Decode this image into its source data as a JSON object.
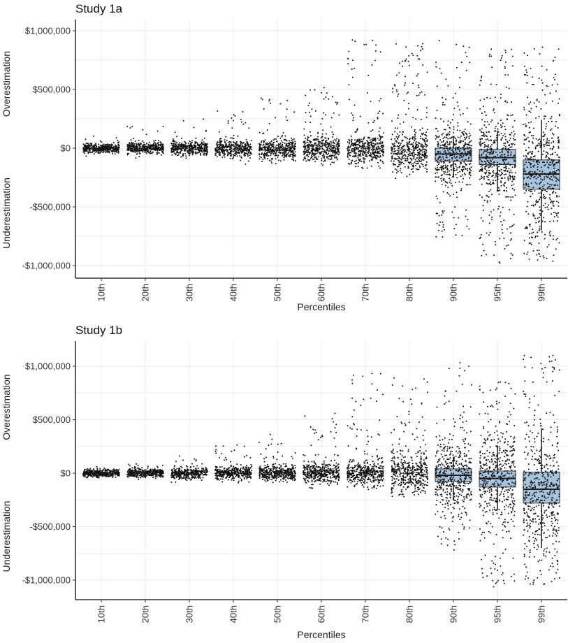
{
  "chart_data": [
    {
      "type": "boxplot-jitter",
      "title": "Study 1a",
      "xlabel": "Percentiles",
      "ylabel_top": "Overestimation",
      "ylabel_bottom": "Underestimation",
      "categories": [
        "10th",
        "20th",
        "30th",
        "40th",
        "50th",
        "60th",
        "70th",
        "80th",
        "90th",
        "95th",
        "99th"
      ],
      "yticks": [
        1000000,
        500000,
        0,
        -500000,
        -1000000
      ],
      "ytick_labels": [
        "$1,000,000",
        "$500,000",
        "$0",
        "-$500,000",
        "-$1,000,000"
      ],
      "ylim": [
        -1100000,
        1110000
      ],
      "grid": true,
      "box_fill": "#a7c4de",
      "point_color": "#111111",
      "spread": [
        20000,
        25000,
        30000,
        35000,
        40000,
        50000,
        60000,
        80000,
        120000,
        160000,
        220000
      ],
      "outlier_max": [
        130000,
        190000,
        250000,
        340000,
        430000,
        540000,
        930000,
        900000,
        920000,
        850000,
        860000
      ],
      "outlier_min": [
        -40000,
        -60000,
        -80000,
        -100000,
        -120000,
        -150000,
        -200000,
        -250000,
        -780000,
        -980000,
        -980000
      ],
      "center": [
        0,
        0,
        0,
        -5000,
        -5000,
        -5000,
        -10000,
        -20000,
        -50000,
        -80000,
        -220000
      ],
      "boxes": [
        null,
        null,
        null,
        null,
        null,
        null,
        null,
        null,
        {
          "q1": -110000,
          "median": -50000,
          "q3": 0,
          "whisker_low": -250000,
          "whisker_high": 100000
        },
        {
          "q1": -140000,
          "median": -80000,
          "q3": -10000,
          "whisker_low": -370000,
          "whisker_high": 150000
        },
        {
          "q1": -350000,
          "median": -220000,
          "q3": -100000,
          "whisker_low": -700000,
          "whisker_high": 240000
        }
      ]
    },
    {
      "type": "boxplot-jitter",
      "title": "Study 1b",
      "xlabel": "Percentiles",
      "ylabel_top": "Overestimation",
      "ylabel_bottom": "Underestimation",
      "categories": [
        "10th",
        "20th",
        "30th",
        "40th",
        "50th",
        "60th",
        "70th",
        "80th",
        "90th",
        "95th",
        "99th"
      ],
      "yticks": [
        1000000,
        500000,
        0,
        -500000,
        -1000000
      ],
      "ytick_labels": [
        "$1,000,000",
        "$500,000",
        "$0",
        "-$500,000",
        "-$1,000,000"
      ],
      "ylim": [
        -1180000,
        1230000
      ],
      "grid": true,
      "box_fill": "#a7c4de",
      "point_color": "#111111",
      "spread": [
        18000,
        20000,
        25000,
        30000,
        35000,
        45000,
        55000,
        80000,
        150000,
        190000,
        250000
      ],
      "outlier_max": [
        60000,
        90000,
        170000,
        270000,
        370000,
        650000,
        940000,
        920000,
        1060000,
        860000,
        1100000
      ],
      "outlier_min": [
        -30000,
        -50000,
        -60000,
        -70000,
        -80000,
        -100000,
        -150000,
        -200000,
        -720000,
        -1080000,
        -1050000
      ],
      "center": [
        0,
        0,
        0,
        0,
        0,
        0,
        0,
        0,
        -20000,
        -50000,
        -150000
      ],
      "boxes": [
        null,
        null,
        null,
        null,
        null,
        null,
        null,
        null,
        {
          "q1": -80000,
          "median": -20000,
          "q3": 40000,
          "whisker_low": -250000,
          "whisker_high": 150000
        },
        {
          "q1": -130000,
          "median": -50000,
          "q3": 20000,
          "whisker_low": -350000,
          "whisker_high": 260000
        },
        {
          "q1": -280000,
          "median": -150000,
          "q3": 10000,
          "whisker_low": -700000,
          "whisker_high": 420000
        }
      ]
    }
  ]
}
